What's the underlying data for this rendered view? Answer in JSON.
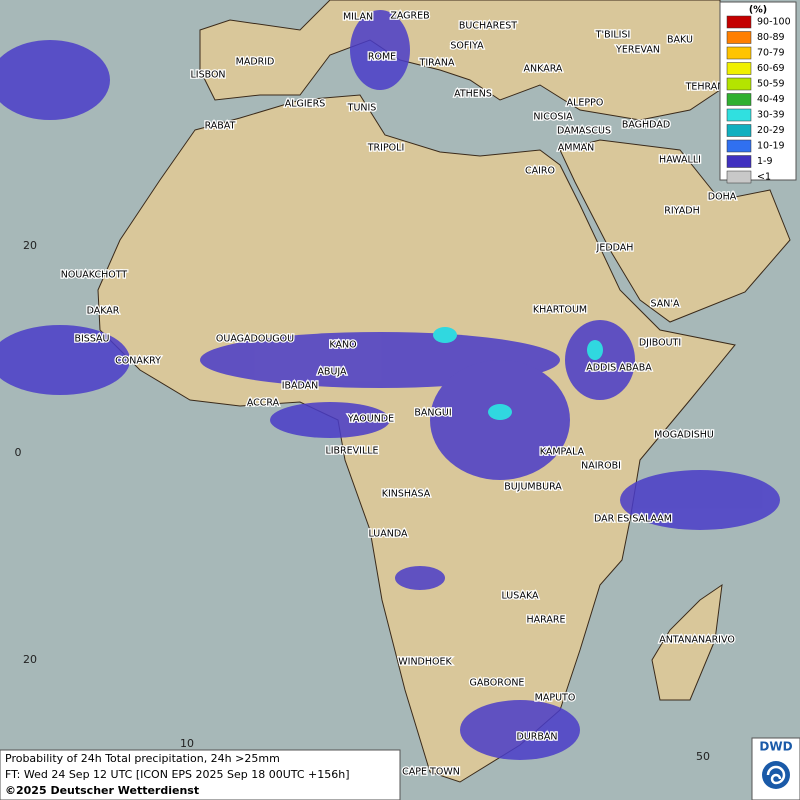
{
  "legend": {
    "title": "(%)",
    "items": [
      {
        "label": "90-100",
        "color": "#c40000"
      },
      {
        "label": "80-89",
        "color": "#ff7f00"
      },
      {
        "label": "70-79",
        "color": "#ffc400"
      },
      {
        "label": "60-69",
        "color": "#f0f000"
      },
      {
        "label": "50-59",
        "color": "#b4e400"
      },
      {
        "label": "40-49",
        "color": "#30b030"
      },
      {
        "label": "30-39",
        "color": "#30e0e0"
      },
      {
        "label": "20-29",
        "color": "#10b0c0"
      },
      {
        "label": "10-19",
        "color": "#3070f0"
      },
      {
        "label": "1-9",
        "color": "#4030c0"
      },
      {
        "label": "<1",
        "color": "#c8c8c8"
      }
    ]
  },
  "cities": [
    "MILAN",
    "ZAGREB",
    "BUCHAREST",
    "T'BILISI",
    "BAKU",
    "ROME",
    "SOFIYA",
    "MADRID",
    "TIRANA",
    "ANKARA",
    "YEREVAN",
    "LISBON",
    "TEHRAN",
    "ALGIERS",
    "TUNIS",
    "ATHENS",
    "ALEPPO",
    "RABAT",
    "NICOSIA",
    "BAGHDAD",
    "DAMASCUS",
    "TRIPOLI",
    "AMMAN",
    "HAWALLI",
    "CAIRO",
    "DOHA",
    "RIYADH",
    "JEDDAH",
    "NOUAKCHOTT",
    "KHARTOUM",
    "SAN'A",
    "DAKAR",
    "BISSAU",
    "OUAGADOUGOU",
    "DJIBOUTI",
    "KANO",
    "CONAKRY",
    "ABUJA",
    "ADDIS ABABA",
    "IBADAN",
    "ACCRA",
    "BANGUI",
    "YAOUNDE",
    "MOGADISHU",
    "LIBREVILLE",
    "KAMPALA",
    "NAIROBI",
    "KINSHASA",
    "BUJUMBURA",
    "DAR ES SALAAM",
    "LUANDA",
    "LUSAKA",
    "HARARE",
    "ANTANANARIVO",
    "WINDHOEK",
    "GABORONE",
    "MAPUTO",
    "DURBAN",
    "CAPE TOWN"
  ],
  "grid_labels": [
    "20",
    "0",
    "20",
    "10",
    "50"
  ],
  "caption": {
    "line1": "Probability of 24h Total precipitation, 24h >25mm",
    "line2": "FT: Wed 24 Sep 12 UTC [ICON EPS 2025 Sep 18 00UTC +156h]",
    "line3": "©2025 Deutscher Wetterdienst"
  },
  "logo": "DWD"
}
